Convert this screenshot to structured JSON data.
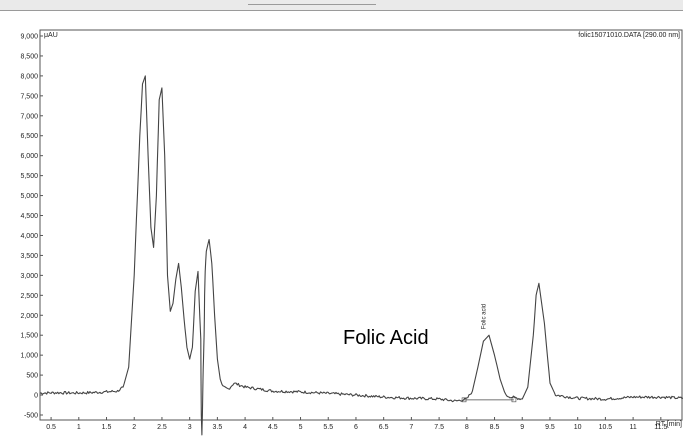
{
  "chart_data": {
    "type": "line",
    "title": "",
    "file_label": "folic15071010.DATA [290.00 nm]",
    "ylabel": "μAU",
    "xlabel": "RT [min]",
    "xlim": [
      0.3,
      11.9
    ],
    "ylim": [
      -500,
      9000
    ],
    "x_ticks": [
      "0.5",
      "1",
      "1.5",
      "2",
      "2.5",
      "3",
      "3.5",
      "4",
      "4.5",
      "5",
      "5.5",
      "6",
      "6.5",
      "7",
      "7.5",
      "8",
      "8.5",
      "9",
      "9.5",
      "10",
      "10.5",
      "11",
      "11.5"
    ],
    "y_ticks": [
      "9,000",
      "8,500",
      "8,000",
      "7,500",
      "7,000",
      "6,500",
      "6,000",
      "5,500",
      "5,000",
      "4,500",
      "4,000",
      "3,500",
      "3,000",
      "2,500",
      "2,000",
      "1,500",
      "1,000",
      "500",
      "0",
      "-500"
    ],
    "series": [
      {
        "x": [
          0.3,
          0.6,
          0.9,
          1.2,
          1.5,
          1.7,
          1.8,
          1.9,
          2.0,
          2.1,
          2.15,
          2.2,
          2.25,
          2.3,
          2.35,
          2.4,
          2.45,
          2.5,
          2.55,
          2.6,
          2.65,
          2.7,
          2.75,
          2.8,
          2.85,
          2.9,
          2.95,
          3.0,
          3.05,
          3.1,
          3.15,
          3.2,
          3.21,
          3.22,
          3.23,
          3.24,
          3.25,
          3.26,
          3.27,
          3.28,
          3.3,
          3.35,
          3.4,
          3.45,
          3.5,
          3.55,
          3.6,
          3.7,
          3.8,
          4.0,
          4.5,
          5.0,
          5.5,
          6.0,
          6.5,
          7.0,
          7.5,
          7.8,
          8.0,
          8.1,
          8.2,
          8.3,
          8.4,
          8.5,
          8.6,
          8.7,
          8.8,
          9.0,
          9.1,
          9.2,
          9.25,
          9.3,
          9.4,
          9.5,
          9.6,
          10.0,
          10.5,
          11.0,
          11.5,
          11.9
        ],
        "y": [
          50,
          60,
          50,
          60,
          80,
          100,
          200,
          700,
          3000,
          6500,
          7800,
          8000,
          6000,
          4200,
          3700,
          5000,
          7400,
          7700,
          6000,
          3000,
          2100,
          2300,
          2900,
          3300,
          2700,
          1900,
          1200,
          900,
          1200,
          2600,
          3100,
          1400,
          -500,
          -1000,
          -500,
          400,
          900,
          1500,
          2500,
          3100,
          3600,
          3900,
          3300,
          2000,
          900,
          400,
          200,
          150,
          300,
          200,
          100,
          80,
          40,
          0,
          -50,
          -80,
          -100,
          -150,
          -100,
          100,
          700,
          1350,
          1500,
          1000,
          400,
          0,
          -50,
          -100,
          200,
          1500,
          2500,
          2800,
          1800,
          300,
          0,
          -80,
          -100,
          -50,
          -50,
          -80
        ]
      }
    ],
    "annotations": [
      {
        "text": "Folic Acid",
        "x": 8.3
      },
      {
        "text": "Folic acid",
        "x": 8.3
      }
    ],
    "grid": false
  }
}
